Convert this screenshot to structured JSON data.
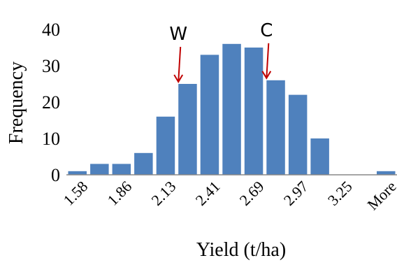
{
  "chart_data": {
    "type": "bar",
    "title": "",
    "xlabel": "Yield (t/ha)",
    "ylabel": "Frequency",
    "ylim": [
      0,
      40
    ],
    "yticks": [
      0,
      10,
      20,
      30,
      40
    ],
    "grid": false,
    "legend": "none",
    "bar_color": "#4f81bd",
    "arrow_color": "#c00000",
    "x_tick_labels": [
      "1.58",
      "1.86",
      "2.13",
      "2.41",
      "2.69",
      "2.97",
      "3.25",
      "More"
    ],
    "x_tick_label_bin_index": [
      0,
      2,
      4,
      6,
      8,
      10,
      12,
      14
    ],
    "bins": [
      {
        "index": 0,
        "value": 1
      },
      {
        "index": 1,
        "value": 3
      },
      {
        "index": 2,
        "value": 3
      },
      {
        "index": 3,
        "value": 6
      },
      {
        "index": 4,
        "value": 16
      },
      {
        "index": 5,
        "value": 25
      },
      {
        "index": 6,
        "value": 33
      },
      {
        "index": 7,
        "value": 36
      },
      {
        "index": 8,
        "value": 35
      },
      {
        "index": 9,
        "value": 26
      },
      {
        "index": 10,
        "value": 22
      },
      {
        "index": 11,
        "value": 10
      },
      {
        "index": 12,
        "value": 0
      },
      {
        "index": 13,
        "value": 0
      },
      {
        "index": 14,
        "value": 1
      }
    ],
    "annotations": [
      {
        "label": "W",
        "bin_index": 5
      },
      {
        "label": "C",
        "bin_index": 9
      }
    ]
  }
}
